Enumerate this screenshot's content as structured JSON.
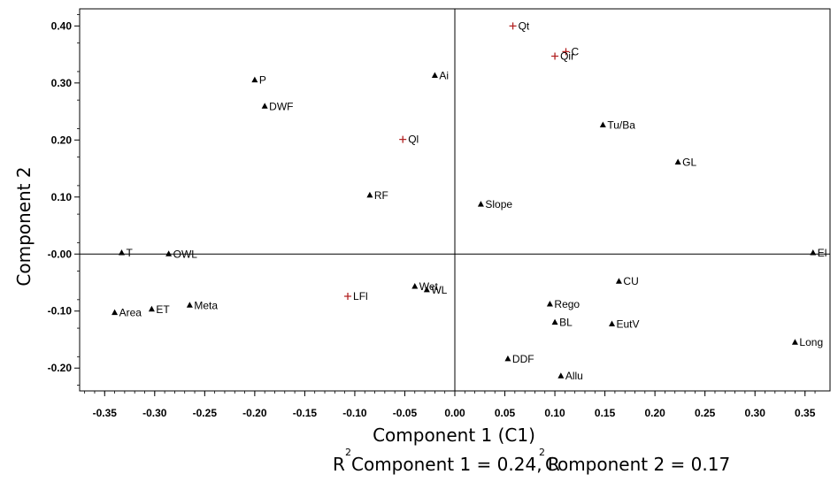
{
  "chart_data": {
    "type": "scatter",
    "xlabel": "Component 1 (C1)",
    "ylabel": "Component 2",
    "xlim": [
      -0.375,
      0.375
    ],
    "ylim": [
      -0.24,
      0.43
    ],
    "x_ticks": [
      -0.35,
      -0.3,
      -0.25,
      -0.2,
      -0.15,
      -0.1,
      -0.05,
      0.0,
      0.05,
      0.1,
      0.15,
      0.2,
      0.25,
      0.3,
      0.35
    ],
    "x_tick_labels": [
      "-0.35",
      "-0.30",
      "-0.25",
      "-0.20",
      "-0.15",
      "-0.10",
      "-0.05",
      "0.00",
      "0.05",
      "0.10",
      "0.15",
      "0.20",
      "0.25",
      "0.30",
      "0.35"
    ],
    "y_ticks": [
      -0.2,
      -0.1,
      0.0,
      0.1,
      0.2,
      0.3,
      0.4
    ],
    "y_tick_labels": [
      "-0.20",
      "-0.10",
      "-0.00",
      "0.10",
      "0.20",
      "0.30",
      "0.40"
    ],
    "colors": {
      "variable": "#000000",
      "supplementary": "#b22222"
    },
    "caption": {
      "r_before": "R",
      "sup": "2",
      "part1": "Component 1 = 0.24, R",
      "part2": "Component 2 = 0.17"
    },
    "series": [
      {
        "marker": "triangle",
        "points": [
          {
            "label": "P",
            "x": -0.2,
            "y": 0.305
          },
          {
            "label": "DWF",
            "x": -0.19,
            "y": 0.259
          },
          {
            "label": "Ai",
            "x": -0.02,
            "y": 0.313
          },
          {
            "label": "Tu/Ba",
            "x": 0.148,
            "y": 0.226
          },
          {
            "label": "GL",
            "x": 0.223,
            "y": 0.161
          },
          {
            "label": "RF",
            "x": -0.085,
            "y": 0.103
          },
          {
            "label": "Slope",
            "x": 0.026,
            "y": 0.087
          },
          {
            "label": "T",
            "x": -0.333,
            "y": 0.002
          },
          {
            "label": "OWL",
            "x": -0.286,
            "y": 0.0
          },
          {
            "label": "El",
            "x": 0.358,
            "y": 0.002
          },
          {
            "label": "Wet",
            "x": -0.04,
            "y": -0.057
          },
          {
            "label": "WL",
            "x": -0.028,
            "y": -0.063
          },
          {
            "label": "CU",
            "x": 0.164,
            "y": -0.048
          },
          {
            "label": "Area",
            "x": -0.34,
            "y": -0.103
          },
          {
            "label": "ET",
            "x": -0.303,
            "y": -0.097
          },
          {
            "label": "Meta",
            "x": -0.265,
            "y": -0.09
          },
          {
            "label": "Rego",
            "x": 0.095,
            "y": -0.088
          },
          {
            "label": "BL",
            "x": 0.1,
            "y": -0.12
          },
          {
            "label": "EutV",
            "x": 0.157,
            "y": -0.123
          },
          {
            "label": "Long",
            "x": 0.34,
            "y": -0.155
          },
          {
            "label": "DDF",
            "x": 0.053,
            "y": -0.184
          },
          {
            "label": "Allu",
            "x": 0.106,
            "y": -0.214
          }
        ]
      },
      {
        "marker": "plus",
        "points": [
          {
            "label": "Qt",
            "x": 0.058,
            "y": 0.4
          },
          {
            "label": "C",
            "x": 0.111,
            "y": 0.355
          },
          {
            "label": "Qir",
            "x": 0.1,
            "y": 0.347
          },
          {
            "label": "Ql",
            "x": -0.052,
            "y": 0.201
          },
          {
            "label": "LFl",
            "x": -0.107,
            "y": -0.074
          }
        ]
      }
    ]
  }
}
